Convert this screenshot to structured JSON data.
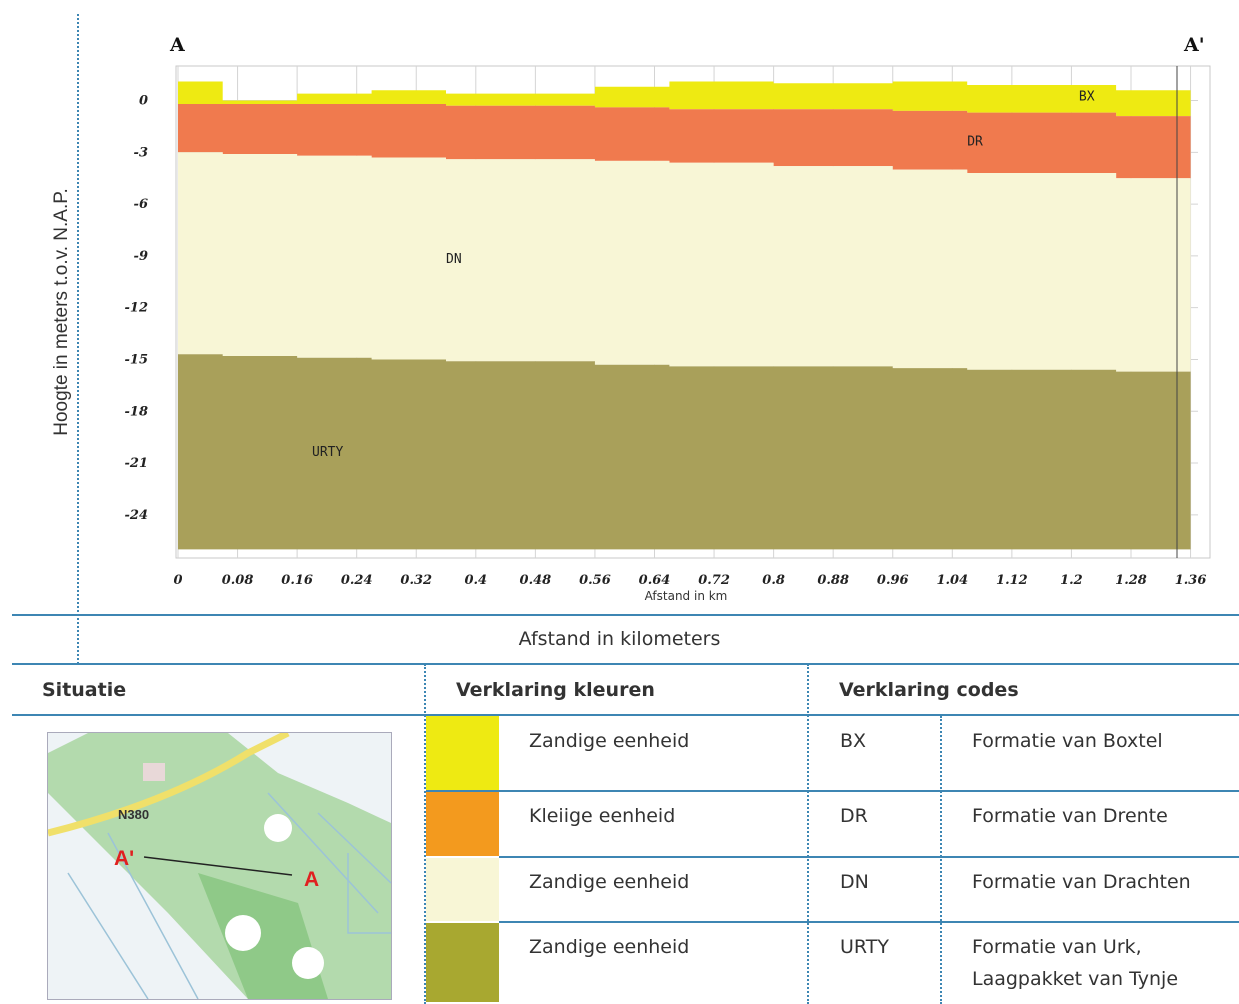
{
  "chart_data": {
    "type": "area",
    "title": "",
    "xlabel": "Afstand in km",
    "ylabel": "Hoogte in meters t.o.v. N.A.P.",
    "xlim": [
      0,
      1.37
    ],
    "ylim": [
      -26.5,
      2
    ],
    "x_ticks": [
      "0",
      "0.08",
      "0.16",
      "0.24",
      "0.32",
      "0.4",
      "0.48",
      "0.56",
      "0.64",
      "0.72",
      "0.8",
      "0.88",
      "0.96",
      "1.04",
      "1.12",
      "1.2",
      "1.28",
      "1.36"
    ],
    "y_ticks": [
      "0",
      "-3",
      "-6",
      "-9",
      "-12",
      "-15",
      "-18",
      "-21",
      "-24"
    ],
    "start_label": "A",
    "end_label": "A'",
    "x": [
      0,
      0.06,
      0.16,
      0.26,
      0.36,
      0.56,
      0.66,
      0.8,
      0.96,
      1.06,
      1.26,
      1.36
    ],
    "series": [
      {
        "name": "BX",
        "color": "#eeea12",
        "top": [
          1.1,
          0.0,
          0.4,
          0.6,
          0.4,
          0.8,
          1.1,
          1.0,
          1.1,
          0.9,
          0.6,
          0.5
        ],
        "bottom": [
          -0.2,
          -0.2,
          -0.2,
          -0.2,
          -0.3,
          -0.4,
          -0.5,
          -0.5,
          -0.6,
          -0.7,
          -0.9,
          -1.0
        ]
      },
      {
        "name": "DR",
        "color": "#f07a4e",
        "top": [
          -0.2,
          -0.2,
          -0.2,
          -0.2,
          -0.3,
          -0.4,
          -0.5,
          -0.5,
          -0.6,
          -0.7,
          -0.9,
          -1.0
        ],
        "bottom": [
          -3.0,
          -3.1,
          -3.2,
          -3.3,
          -3.4,
          -3.5,
          -3.6,
          -3.8,
          -4.0,
          -4.2,
          -4.5,
          -4.6
        ]
      },
      {
        "name": "DN",
        "color": "#f8f6d6",
        "top": [
          -3.0,
          -3.1,
          -3.2,
          -3.3,
          -3.4,
          -3.5,
          -3.6,
          -3.8,
          -4.0,
          -4.2,
          -4.5,
          -4.6
        ],
        "bottom": [
          -14.7,
          -14.8,
          -14.9,
          -15.0,
          -15.1,
          -15.3,
          -15.4,
          -15.4,
          -15.5,
          -15.6,
          -15.7,
          -15.8
        ]
      },
      {
        "name": "URTY",
        "color": "#a9a05a",
        "top": [
          -14.7,
          -14.8,
          -14.9,
          -15.0,
          -15.1,
          -15.3,
          -15.4,
          -15.4,
          -15.5,
          -15.6,
          -15.7,
          -15.8
        ],
        "bottom": [
          -26.0,
          -26.0,
          -26.0,
          -26.0,
          -26.0,
          -26.0,
          -26.0,
          -26.0,
          -26.0,
          -26.0,
          -26.0,
          -26.0
        ]
      }
    ],
    "layer_labels": [
      {
        "text": "BX",
        "x": 1.21,
        "y": 0.0
      },
      {
        "text": "DR",
        "x": 1.06,
        "y": -2.6
      },
      {
        "text": "DN",
        "x": 0.36,
        "y": -9.4
      },
      {
        "text": "URTY",
        "x": 0.18,
        "y": -20.6
      }
    ]
  },
  "caption": "Afstand in kilometers",
  "headers": {
    "situatie": "Situatie",
    "kleuren": "Verklaring kleuren",
    "codes": "Verklaring codes"
  },
  "legend": [
    {
      "color": "#eeea12",
      "kleur": "Zandige eenheid",
      "code": "BX",
      "formatie": "Formatie van Boxtel"
    },
    {
      "color": "#f39a1e",
      "kleur": "Kleiige eenheid",
      "code": "DR",
      "formatie": "Formatie van Drente"
    },
    {
      "color": "#f8f6d6",
      "kleur": "Zandige eenheid",
      "code": "DN",
      "formatie": "Formatie van Drachten"
    },
    {
      "color": "#a8a830",
      "kleur": "Zandige eenheid",
      "code": "URTY",
      "formatie": "Formatie van Urk,",
      "formatie2": "Laagpakket van Tynje"
    }
  ],
  "map": {
    "road": "N380",
    "label_a": "A",
    "label_a_prime": "A'"
  }
}
